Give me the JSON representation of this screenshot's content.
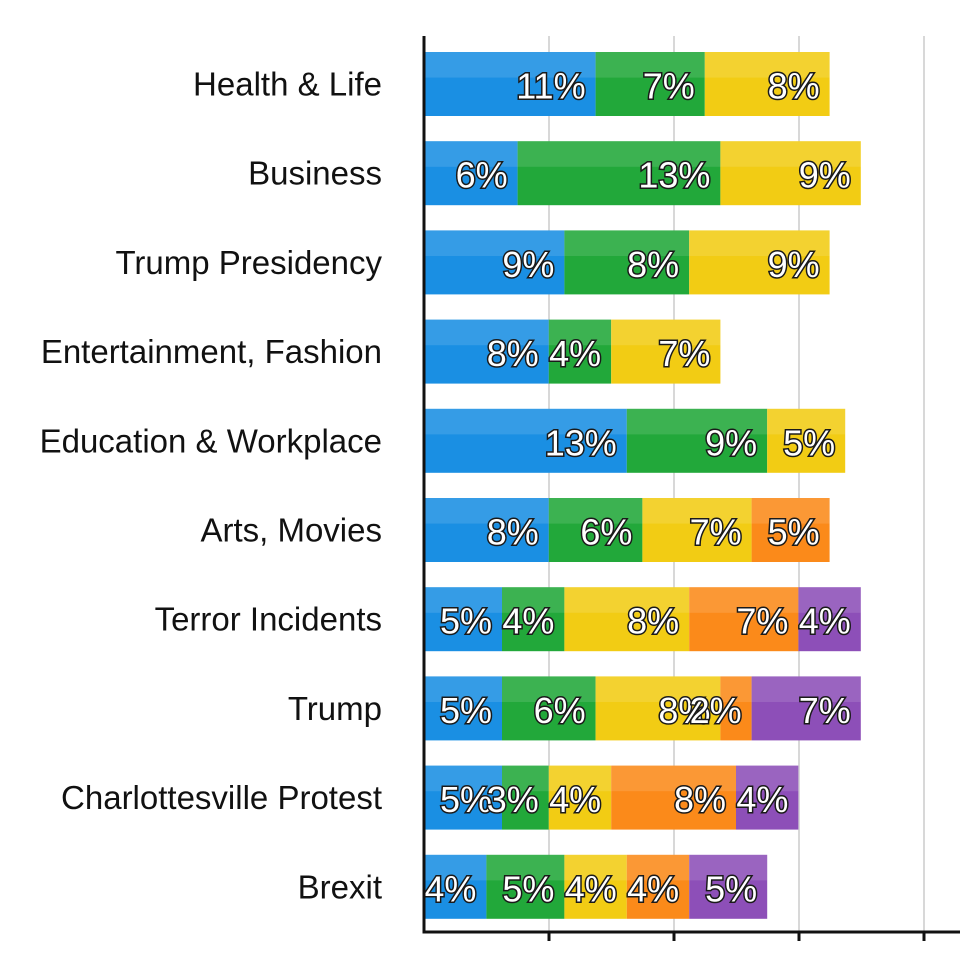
{
  "chart_data": {
    "type": "bar",
    "orientation": "horizontal",
    "stacked": true,
    "categories": [
      "Health & Life",
      "Business",
      "Trump Presidency",
      "Entertainment, Fashion",
      "Education & Workplace",
      "Arts, Movies",
      "Terror Incidents",
      "Trump",
      "Charlottesville Protest",
      "Brexit"
    ],
    "series": [
      {
        "color": "#1a8fe3",
        "values": [
          11,
          6,
          9,
          8,
          13,
          8,
          5,
          5,
          5,
          4
        ],
        "labels": [
          "11%",
          "6%",
          "9%",
          "8%",
          "13%",
          "8%",
          "5%",
          "5%",
          "5%",
          "4%"
        ]
      },
      {
        "color": "#22a83a",
        "values": [
          7,
          13,
          8,
          4,
          9,
          6,
          4,
          6,
          3,
          5
        ],
        "labels": [
          "7%",
          "13%",
          "8%",
          "4%",
          "9%",
          "6%",
          "4%",
          "6%",
          "3%",
          "5%"
        ]
      },
      {
        "color": "#f2cc14",
        "values": [
          8,
          9,
          9,
          7,
          5,
          7,
          8,
          8,
          4,
          4
        ],
        "labels": [
          "8%",
          "9%",
          "9%",
          "7%",
          "5%",
          "7%",
          "8%",
          "8%",
          "4%",
          "4%"
        ]
      },
      {
        "color": "#fb8a1a",
        "values": [
          null,
          null,
          null,
          null,
          null,
          5,
          7,
          2,
          8,
          4
        ],
        "labels": [
          "",
          "",
          "",
          "",
          "",
          "5%",
          "7%",
          "2%",
          "8%",
          "4%"
        ]
      },
      {
        "color": "#8d4fb8",
        "values": [
          null,
          null,
          null,
          null,
          null,
          null,
          4,
          7,
          4,
          5
        ],
        "labels": [
          "",
          "",
          "",
          "",
          "",
          "",
          "4%",
          "7%",
          "4%",
          "5%"
        ]
      }
    ],
    "grid": true,
    "legend": "none"
  }
}
